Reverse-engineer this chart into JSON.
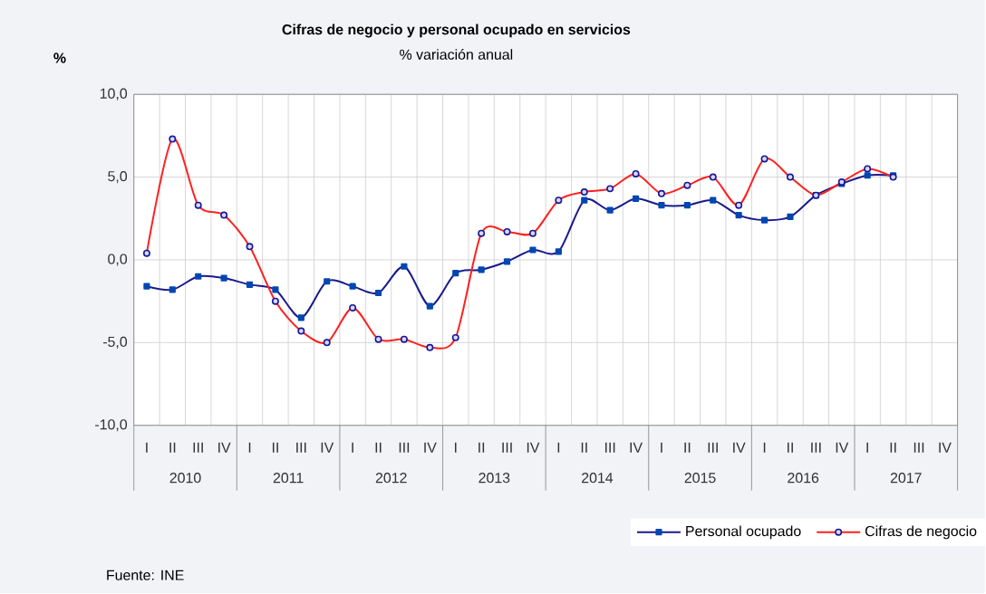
{
  "chart_data": {
    "type": "line",
    "title": "Cifras de negocio y personal ocupado en servicios",
    "subtitle": "% variación anual",
    "ylabel": "%",
    "categories": [
      "I",
      "II",
      "III",
      "IV",
      "I",
      "II",
      "III",
      "IV",
      "I",
      "II",
      "III",
      "IV",
      "I",
      "II",
      "III",
      "IV",
      "I",
      "II",
      "III",
      "IV",
      "I",
      "II",
      "III",
      "IV",
      "I",
      "II",
      "III",
      "IV",
      "I",
      "II",
      "III",
      "IV"
    ],
    "series": [
      {
        "name": "Personal ocupado",
        "color": "#1a1a8c",
        "marker": "square",
        "values": [
          -1.6,
          -1.8,
          -1.0,
          -1.1,
          -1.5,
          -1.8,
          -3.5,
          -1.3,
          -1.6,
          -2.0,
          -0.4,
          -2.8,
          -0.8,
          -0.6,
          -0.1,
          0.6,
          0.5,
          3.6,
          3.0,
          3.7,
          3.3,
          3.3,
          3.6,
          2.7,
          2.4,
          2.6,
          3.9,
          4.6,
          5.1,
          5.1,
          null,
          null
        ]
      },
      {
        "name": "Cifras de negocio",
        "color": "#ff2020",
        "marker": "circle",
        "values": [
          0.4,
          7.3,
          3.3,
          2.7,
          0.8,
          -2.5,
          -4.3,
          -5.0,
          -2.9,
          -4.8,
          -4.8,
          -5.3,
          -4.7,
          1.6,
          1.7,
          1.6,
          3.6,
          4.1,
          4.3,
          5.2,
          4.0,
          4.5,
          5.0,
          3.3,
          6.1,
          5.0,
          3.9,
          4.7,
          5.5,
          5.0,
          null,
          null
        ]
      }
    ],
    "ylim": [
      -10,
      10
    ],
    "yticks": [
      {
        "value": -10,
        "label": "-10,0"
      },
      {
        "value": -5,
        "label": "-5,0"
      },
      {
        "value": 0,
        "label": "0,0"
      },
      {
        "value": 5,
        "label": "5,0"
      },
      {
        "value": 10,
        "label": "10,0"
      }
    ],
    "grid": true,
    "legend": "bottom right",
    "annotations": [
      {
        "text": "2010"
      },
      {
        "text": "2011"
      },
      {
        "text": "2012"
      },
      {
        "text": "2013"
      },
      {
        "text": "2014"
      },
      {
        "text": "2015"
      },
      {
        "text": "2016"
      },
      {
        "text": "2017"
      },
      "Fuente: INE"
    ]
  }
}
